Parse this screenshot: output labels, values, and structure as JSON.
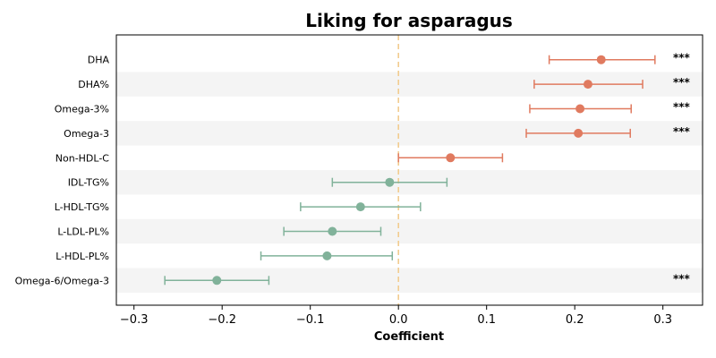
{
  "chart_data": {
    "type": "forest",
    "title": "Liking for asparagus",
    "xlabel": "Coefficient",
    "xlim": [
      -0.32,
      0.345
    ],
    "xticks": [
      -0.3,
      -0.2,
      -0.1,
      0.0,
      0.1,
      0.2,
      0.3
    ],
    "xtick_labels": [
      "−0.3",
      "−0.2",
      "−0.1",
      "0.0",
      "0.1",
      "0.2",
      "0.3"
    ],
    "reference_line": 0,
    "colors": {
      "positive": "#e07a5f",
      "negative": "#81b29a",
      "reference": "#f2cc8f",
      "band": "#f4f4f4"
    },
    "rows": [
      {
        "label": "DHA",
        "estimate": 0.23,
        "ci_low": 0.171,
        "ci_high": 0.291,
        "significance": "***"
      },
      {
        "label": "DHA%",
        "estimate": 0.215,
        "ci_low": 0.154,
        "ci_high": 0.277,
        "significance": "***"
      },
      {
        "label": "Omega-3%",
        "estimate": 0.206,
        "ci_low": 0.149,
        "ci_high": 0.264,
        "significance": "***"
      },
      {
        "label": "Omega-3",
        "estimate": 0.204,
        "ci_low": 0.145,
        "ci_high": 0.263,
        "significance": "***"
      },
      {
        "label": "Non-HDL-C",
        "estimate": 0.059,
        "ci_low": 0.0,
        "ci_high": 0.118,
        "significance": ""
      },
      {
        "label": "IDL-TG%",
        "estimate": -0.01,
        "ci_low": -0.075,
        "ci_high": 0.055,
        "significance": ""
      },
      {
        "label": "L-HDL-TG%",
        "estimate": -0.043,
        "ci_low": -0.111,
        "ci_high": 0.025,
        "significance": ""
      },
      {
        "label": "L-LDL-PL%",
        "estimate": -0.075,
        "ci_low": -0.13,
        "ci_high": -0.02,
        "significance": ""
      },
      {
        "label": "L-HDL-PL%",
        "estimate": -0.081,
        "ci_low": -0.156,
        "ci_high": -0.007,
        "significance": ""
      },
      {
        "label": "Omega-6/Omega-3",
        "estimate": -0.206,
        "ci_low": -0.265,
        "ci_high": -0.147,
        "significance": "***"
      }
    ]
  }
}
